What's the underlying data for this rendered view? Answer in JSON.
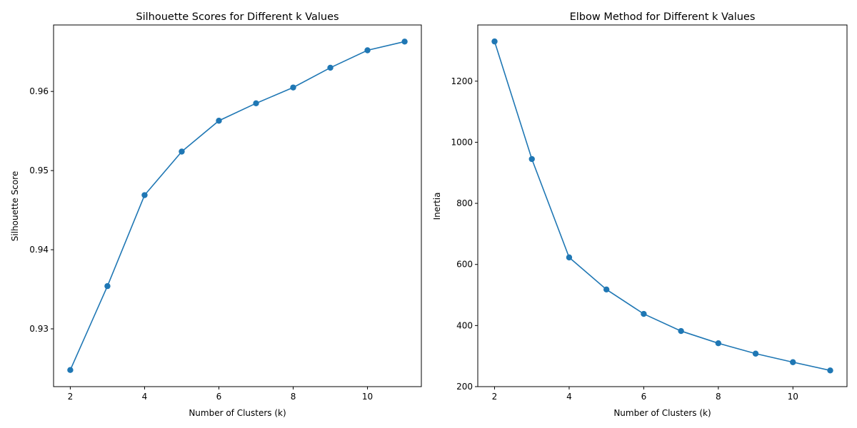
{
  "chart_data": [
    {
      "type": "line",
      "title": "Silhouette Scores for Different k Values",
      "xlabel": "Number of Clusters (k)",
      "ylabel": "Silhouette Score",
      "x": [
        2,
        3,
        4,
        5,
        6,
        7,
        8,
        9,
        10,
        11
      ],
      "series": [
        {
          "values": [
            0.9248,
            0.9354,
            0.9469,
            0.9524,
            0.9563,
            0.9585,
            0.9605,
            0.963,
            0.9652,
            0.9663
          ],
          "color": "#1f77b4",
          "marker": "circle"
        }
      ],
      "xlim": [
        1.55,
        11.45
      ],
      "ylim": [
        0.9227,
        0.9684
      ],
      "xticks": [
        2,
        4,
        6,
        8,
        10
      ],
      "yticks": [
        0.93,
        0.94,
        0.95,
        0.96
      ],
      "ytick_labels": [
        "0.93",
        "0.94",
        "0.95",
        "0.96"
      ],
      "grid": false,
      "legend": "none"
    },
    {
      "type": "line",
      "title": "Elbow Method for Different k Values",
      "xlabel": "Number of Clusters (k)",
      "ylabel": "Inertia",
      "x": [
        2,
        3,
        4,
        5,
        6,
        7,
        8,
        9,
        10,
        11
      ],
      "series": [
        {
          "values": [
            1330,
            945,
            623,
            518,
            438,
            382,
            342,
            308,
            280,
            253
          ],
          "color": "#1f77b4",
          "marker": "circle"
        }
      ],
      "xlim": [
        1.55,
        11.45
      ],
      "ylim": [
        200,
        1384
      ],
      "xticks": [
        2,
        4,
        6,
        8,
        10
      ],
      "yticks": [
        200,
        400,
        600,
        800,
        1000,
        1200
      ],
      "ytick_labels": [
        "200",
        "400",
        "600",
        "800",
        "1000",
        "1200"
      ],
      "grid": false,
      "legend": "none"
    }
  ]
}
